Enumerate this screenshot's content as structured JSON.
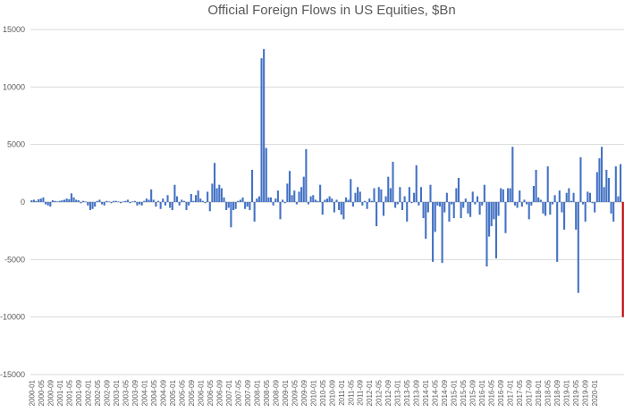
{
  "chart_data": {
    "type": "bar",
    "title": "Official Foreign Flows in US Equities, $Bn",
    "xlabel": "",
    "ylabel": "",
    "ylim": [
      -15000,
      15000
    ],
    "yticks": [
      15000,
      10000,
      5000,
      0,
      -5000,
      -10000,
      -15000
    ],
    "grid": true,
    "legend": "none",
    "bar_color": "#4472c4",
    "highlight_color": "#c00000",
    "start_month": "2000-01",
    "tick_labels": [
      "2000-01",
      "2000-05",
      "2000-09",
      "2001-01",
      "2001-05",
      "2001-09",
      "2002-01",
      "2002-05",
      "2002-09",
      "2003-01",
      "2003-05",
      "2003-09",
      "2004-01",
      "2004-05",
      "2004-09",
      "2005-01",
      "2005-05",
      "2005-09",
      "2006-01",
      "2006-05",
      "2006-09",
      "2007-01",
      "2007-05",
      "2007-09",
      "2008-01",
      "2008-05",
      "2008-09",
      "2009-01",
      "2009-05",
      "2009-09",
      "2010-01",
      "2010-05",
      "2010-09",
      "2011-01",
      "2011-05",
      "2011-09",
      "2012-01",
      "2012-05",
      "2012-09",
      "2013-01",
      "2013-05",
      "2013-09",
      "2014-01",
      "2014-05",
      "2014-09",
      "2015-01",
      "2015-05",
      "2015-09",
      "2016-01",
      "2016-05",
      "2016-09",
      "2017-01",
      "2017-05",
      "2017-09",
      "2018-01",
      "2018-05",
      "2018-09",
      "2019-01",
      "2019-05",
      "2019-09",
      "2020-01"
    ],
    "values": [
      150,
      200,
      100,
      250,
      300,
      400,
      -200,
      -300,
      -400,
      150,
      100,
      50,
      100,
      150,
      200,
      300,
      250,
      750,
      400,
      200,
      150,
      -100,
      100,
      50,
      -300,
      -700,
      -600,
      -400,
      100,
      200,
      -200,
      -300,
      100,
      50,
      -100,
      100,
      100,
      50,
      -100,
      50,
      100,
      200,
      -100,
      50,
      100,
      -300,
      -200,
      -300,
      100,
      300,
      200,
      1100,
      200,
      -400,
      100,
      -600,
      300,
      -300,
      600,
      -500,
      -700,
      1500,
      500,
      -300,
      200,
      100,
      -700,
      -300,
      700,
      100,
      600,
      1000,
      300,
      100,
      -100,
      900,
      -800,
      1600,
      3400,
      1200,
      1500,
      1200,
      400,
      -700,
      -500,
      -2200,
      -700,
      -600,
      100,
      200,
      400,
      -600,
      -400,
      -700,
      2800,
      -1700,
      300,
      500,
      12500,
      13300,
      4700,
      400,
      400,
      -300,
      300,
      1000,
      -1500,
      200,
      -100,
      1600,
      2700,
      600,
      1000,
      -200,
      900,
      1300,
      2200,
      4600,
      -200,
      500,
      600,
      200,
      100,
      1500,
      -1100,
      200,
      300,
      500,
      300,
      -900,
      200,
      -700,
      -1100,
      -1500,
      400,
      200,
      2000,
      -400,
      800,
      1300,
      900,
      -300,
      100,
      -600,
      300,
      100,
      1200,
      -2100,
      1300,
      1100,
      -1200,
      500,
      2200,
      1200,
      3500,
      -500,
      -200,
      1300,
      -700,
      500,
      -1700,
      1300,
      -100,
      800,
      3200,
      -300,
      1300,
      -1400,
      -3200,
      -900,
      1500,
      -5200,
      -2600,
      -300,
      -400,
      -5300,
      -900,
      800,
      -1700,
      -200,
      -1400,
      1200,
      2100,
      -1400,
      -500,
      300,
      -1000,
      -1300,
      900,
      -200,
      500,
      -1100,
      -300,
      1500,
      -5600,
      -3000,
      -2100,
      -1500,
      -4900,
      -1200,
      1200,
      1100,
      -2700,
      1200,
      1200,
      4800,
      -300,
      -500,
      1000,
      -400,
      200,
      -200,
      -1500,
      -300,
      1400,
      2800,
      400,
      200,
      -1000,
      -1200,
      3100,
      -1100,
      -200,
      600,
      -5200,
      1000,
      -900,
      -2400,
      800,
      1200,
      100,
      800,
      -2400,
      -7900,
      3900,
      -200,
      -1700,
      900,
      800,
      -100,
      -900,
      2600,
      3800,
      4800,
      1300,
      2800,
      2100,
      -1000,
      -1700,
      3100,
      500,
      3300,
      -10000
    ]
  }
}
